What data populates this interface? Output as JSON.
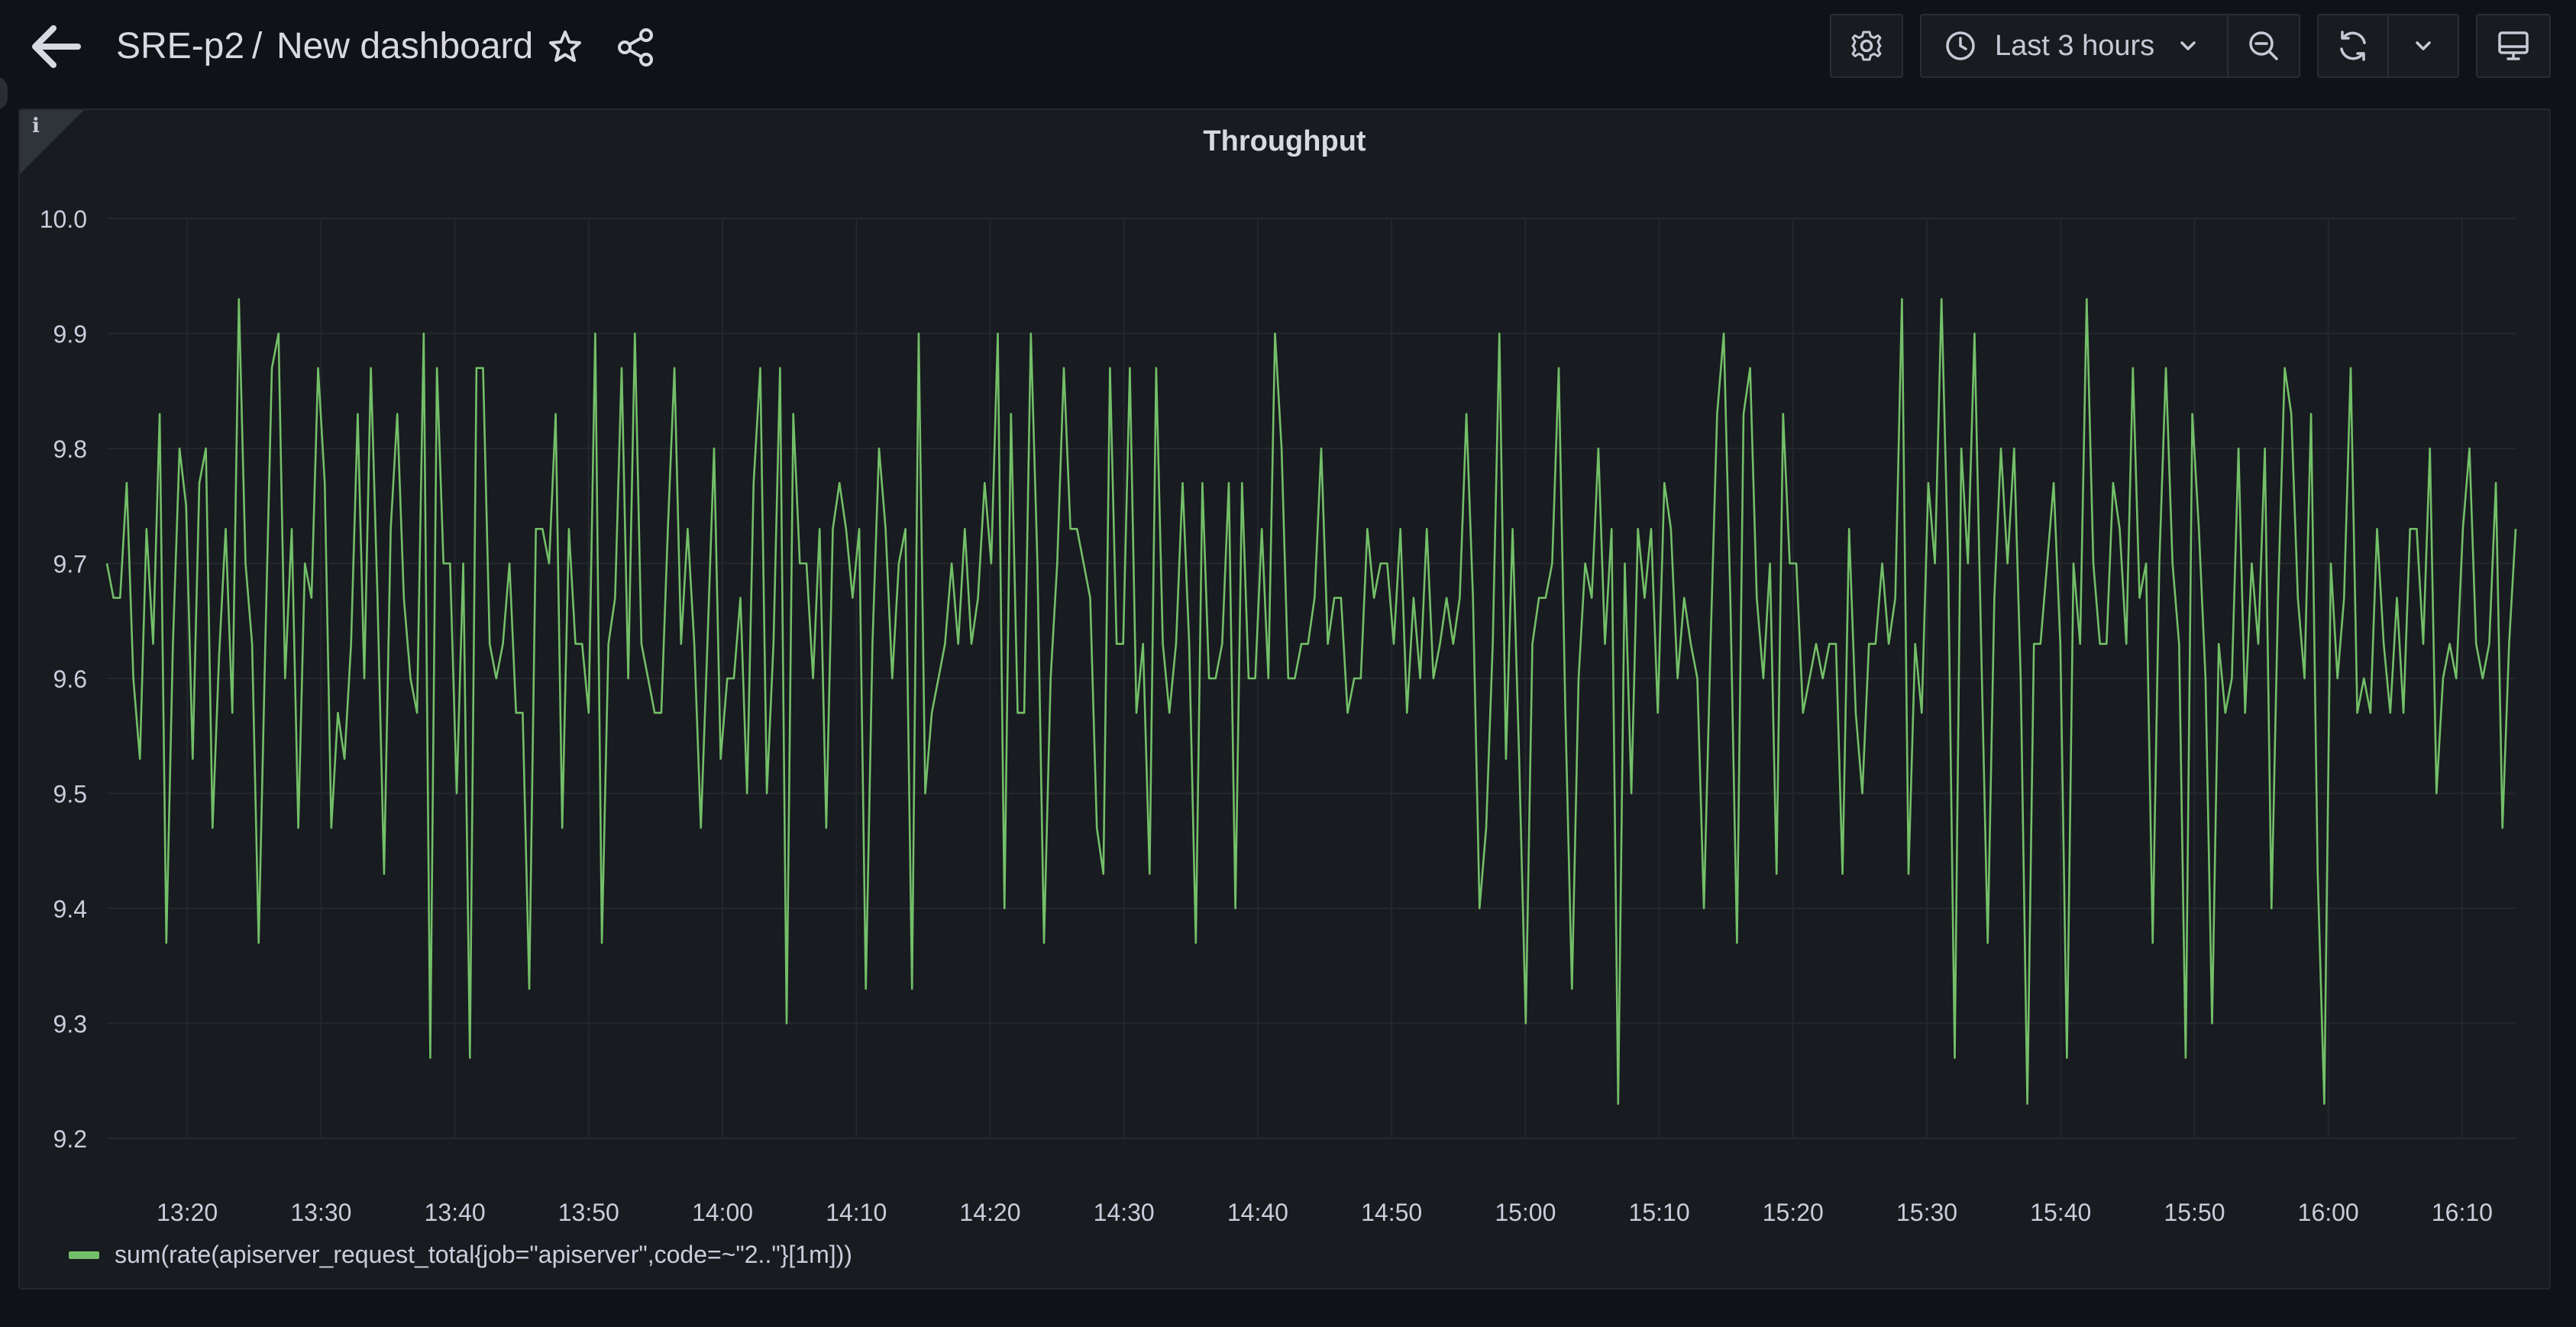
{
  "header": {
    "folder": "SRE-p2",
    "separator": "/",
    "title": "New dashboard",
    "time_range": "Last 3 hours"
  },
  "panel": {
    "title": "Throughput",
    "info_glyph": "i"
  },
  "icons": {
    "back": "arrow-left-icon",
    "star": "star-icon",
    "share": "share-icon",
    "settings": "gear-icon",
    "clock": "clock-icon",
    "chevron": "chevron-down-icon",
    "zoom_out": "zoom-out-icon",
    "refresh": "refresh-icon",
    "tv": "monitor-icon"
  },
  "colors": {
    "background": "#111217",
    "panel": "#181b1f",
    "series": "#73bf69",
    "grid": "#24272d",
    "text": "#ccccdc"
  },
  "chart_data": {
    "type": "line",
    "title": "Throughput",
    "xlabel": "",
    "ylabel": "",
    "ylim": [
      9.2,
      10.0
    ],
    "yticks": [
      "9.2",
      "9.3",
      "9.4",
      "9.5",
      "9.6",
      "9.7",
      "9.8",
      "9.9",
      "10.0"
    ],
    "xlim": [
      "13:14",
      "16:14"
    ],
    "xticks": [
      "13:20",
      "13:30",
      "13:40",
      "13:50",
      "14:00",
      "14:10",
      "14:20",
      "14:30",
      "14:40",
      "14:50",
      "15:00",
      "15:10",
      "15:20",
      "15:30",
      "15:40",
      "15:50",
      "16:00",
      "16:10"
    ],
    "grid": true,
    "legend_position": "bottom-left",
    "series": [
      {
        "name": "sum(rate(apiserver_request_total{job=\"apiserver\",code=~\"2..\"}[1m]))",
        "color": "#73bf69",
        "x_start": "13:14",
        "x_end": "16:14",
        "values": [
          9.7,
          9.67,
          9.67,
          9.77,
          9.6,
          9.53,
          9.73,
          9.63,
          9.83,
          9.37,
          9.63,
          9.8,
          9.75,
          9.53,
          9.77,
          9.8,
          9.47,
          9.62,
          9.73,
          9.57,
          9.93,
          9.7,
          9.63,
          9.37,
          9.63,
          9.87,
          9.9,
          9.6,
          9.73,
          9.47,
          9.7,
          9.67,
          9.87,
          9.77,
          9.47,
          9.57,
          9.53,
          9.63,
          9.83,
          9.6,
          9.87,
          9.67,
          9.43,
          9.73,
          9.83,
          9.67,
          9.6,
          9.57,
          9.9,
          9.27,
          9.87,
          9.7,
          9.7,
          9.5,
          9.7,
          9.27,
          9.87,
          9.87,
          9.63,
          9.6,
          9.63,
          9.7,
          9.57,
          9.57,
          9.33,
          9.73,
          9.73,
          9.7,
          9.83,
          9.47,
          9.73,
          9.63,
          9.63,
          9.57,
          9.9,
          9.37,
          9.63,
          9.67,
          9.87,
          9.6,
          9.9,
          9.63,
          9.6,
          9.57,
          9.57,
          9.73,
          9.87,
          9.63,
          9.73,
          9.63,
          9.47,
          9.63,
          9.8,
          9.53,
          9.6,
          9.6,
          9.67,
          9.5,
          9.77,
          9.87,
          9.5,
          9.63,
          9.87,
          9.3,
          9.83,
          9.7,
          9.7,
          9.6,
          9.73,
          9.47,
          9.73,
          9.77,
          9.73,
          9.67,
          9.73,
          9.33,
          9.63,
          9.8,
          9.73,
          9.6,
          9.7,
          9.73,
          9.33,
          9.9,
          9.5,
          9.57,
          9.6,
          9.63,
          9.7,
          9.63,
          9.73,
          9.63,
          9.67,
          9.77,
          9.7,
          9.9,
          9.4,
          9.83,
          9.57,
          9.57,
          9.9,
          9.7,
          9.37,
          9.6,
          9.7,
          9.87,
          9.73,
          9.73,
          9.7,
          9.67,
          9.47,
          9.43,
          9.87,
          9.63,
          9.63,
          9.87,
          9.57,
          9.63,
          9.43,
          9.87,
          9.63,
          9.57,
          9.63,
          9.77,
          9.63,
          9.37,
          9.77,
          9.6,
          9.6,
          9.63,
          9.77,
          9.4,
          9.77,
          9.6,
          9.6,
          9.73,
          9.6,
          9.9,
          9.8,
          9.6,
          9.6,
          9.63,
          9.63,
          9.67,
          9.8,
          9.63,
          9.67,
          9.67,
          9.57,
          9.6,
          9.6,
          9.73,
          9.67,
          9.7,
          9.7,
          9.63,
          9.73,
          9.57,
          9.67,
          9.6,
          9.73,
          9.6,
          9.63,
          9.67,
          9.63,
          9.67,
          9.83,
          9.67,
          9.4,
          9.47,
          9.63,
          9.9,
          9.53,
          9.73,
          9.53,
          9.3,
          9.63,
          9.67,
          9.67,
          9.7,
          9.87,
          9.57,
          9.33,
          9.6,
          9.7,
          9.67,
          9.8,
          9.63,
          9.73,
          9.23,
          9.7,
          9.5,
          9.73,
          9.67,
          9.73,
          9.57,
          9.77,
          9.73,
          9.6,
          9.67,
          9.63,
          9.6,
          9.4,
          9.63,
          9.83,
          9.9,
          9.67,
          9.37,
          9.83,
          9.87,
          9.67,
          9.6,
          9.7,
          9.43,
          9.83,
          9.7,
          9.7,
          9.57,
          9.6,
          9.63,
          9.6,
          9.63,
          9.63,
          9.43,
          9.73,
          9.57,
          9.5,
          9.63,
          9.63,
          9.7,
          9.63,
          9.67,
          9.93,
          9.43,
          9.63,
          9.57,
          9.77,
          9.7,
          9.93,
          9.7,
          9.27,
          9.8,
          9.7,
          9.9,
          9.63,
          9.37,
          9.67,
          9.8,
          9.7,
          9.8,
          9.6,
          9.23,
          9.63,
          9.63,
          9.7,
          9.77,
          9.63,
          9.27,
          9.7,
          9.63,
          9.93,
          9.7,
          9.63,
          9.63,
          9.77,
          9.73,
          9.63,
          9.87,
          9.67,
          9.7,
          9.37,
          9.7,
          9.87,
          9.7,
          9.63,
          9.27,
          9.83,
          9.73,
          9.6,
          9.3,
          9.63,
          9.57,
          9.6,
          9.8,
          9.57,
          9.7,
          9.63,
          9.8,
          9.4,
          9.67,
          9.87,
          9.83,
          9.67,
          9.6,
          9.83,
          9.43,
          9.23,
          9.7,
          9.6,
          9.67,
          9.87,
          9.57,
          9.6,
          9.57,
          9.73,
          9.63,
          9.57,
          9.67,
          9.57,
          9.73,
          9.73,
          9.63,
          9.8,
          9.5,
          9.6,
          9.63,
          9.6,
          9.73,
          9.8,
          9.63,
          9.6,
          9.63,
          9.77,
          9.47,
          9.63,
          9.73
        ]
      }
    ]
  }
}
